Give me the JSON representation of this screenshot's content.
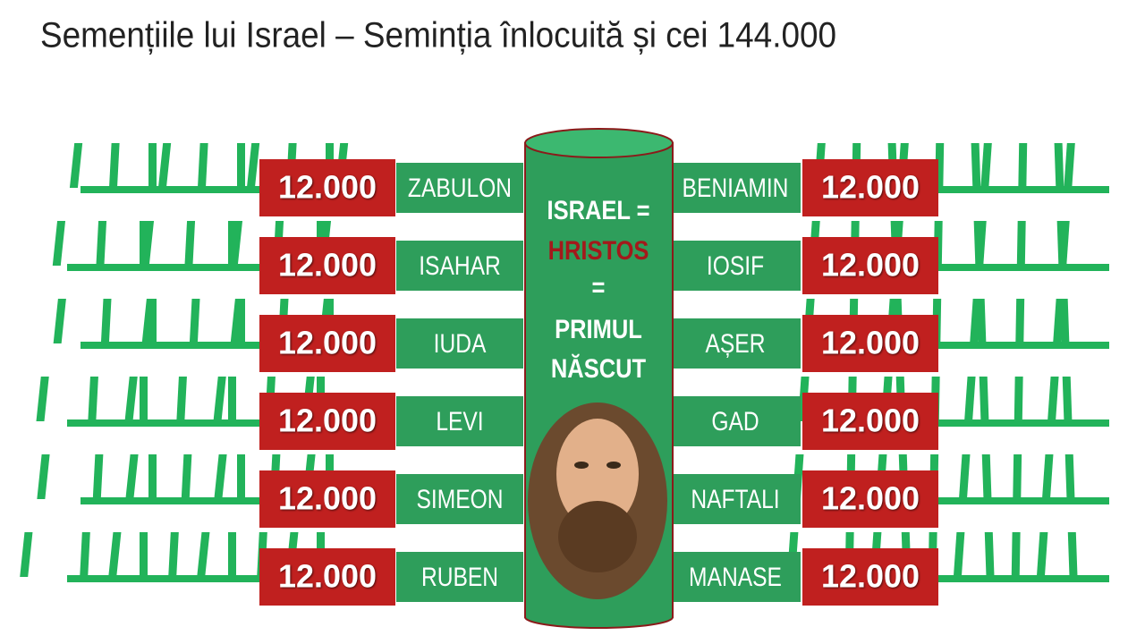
{
  "title": "Semențiile lui Israel – Seminția înlocuită și cei 144.000",
  "center": {
    "lines": [
      "ISRAEL =",
      "HRISTOS",
      "=",
      "PRIMUL",
      "NĂSCUT"
    ]
  },
  "left": [
    {
      "count": "12.000",
      "name": "ZABULON"
    },
    {
      "count": "12.000",
      "name": "ISAHAR"
    },
    {
      "count": "12.000",
      "name": "IUDA"
    },
    {
      "count": "12.000",
      "name": "LEVI"
    },
    {
      "count": "12.000",
      "name": "SIMEON"
    },
    {
      "count": "12.000",
      "name": "RUBEN"
    }
  ],
  "right": [
    {
      "name": "BENIAMIN",
      "count": "12.000"
    },
    {
      "name": "IOSIF",
      "count": "12.000"
    },
    {
      "name": "AȘER",
      "count": "12.000"
    },
    {
      "name": "GAD",
      "count": "12.000"
    },
    {
      "name": "NAFTALI",
      "count": "12.000"
    },
    {
      "name": "MANASE",
      "count": "12.000"
    }
  ]
}
